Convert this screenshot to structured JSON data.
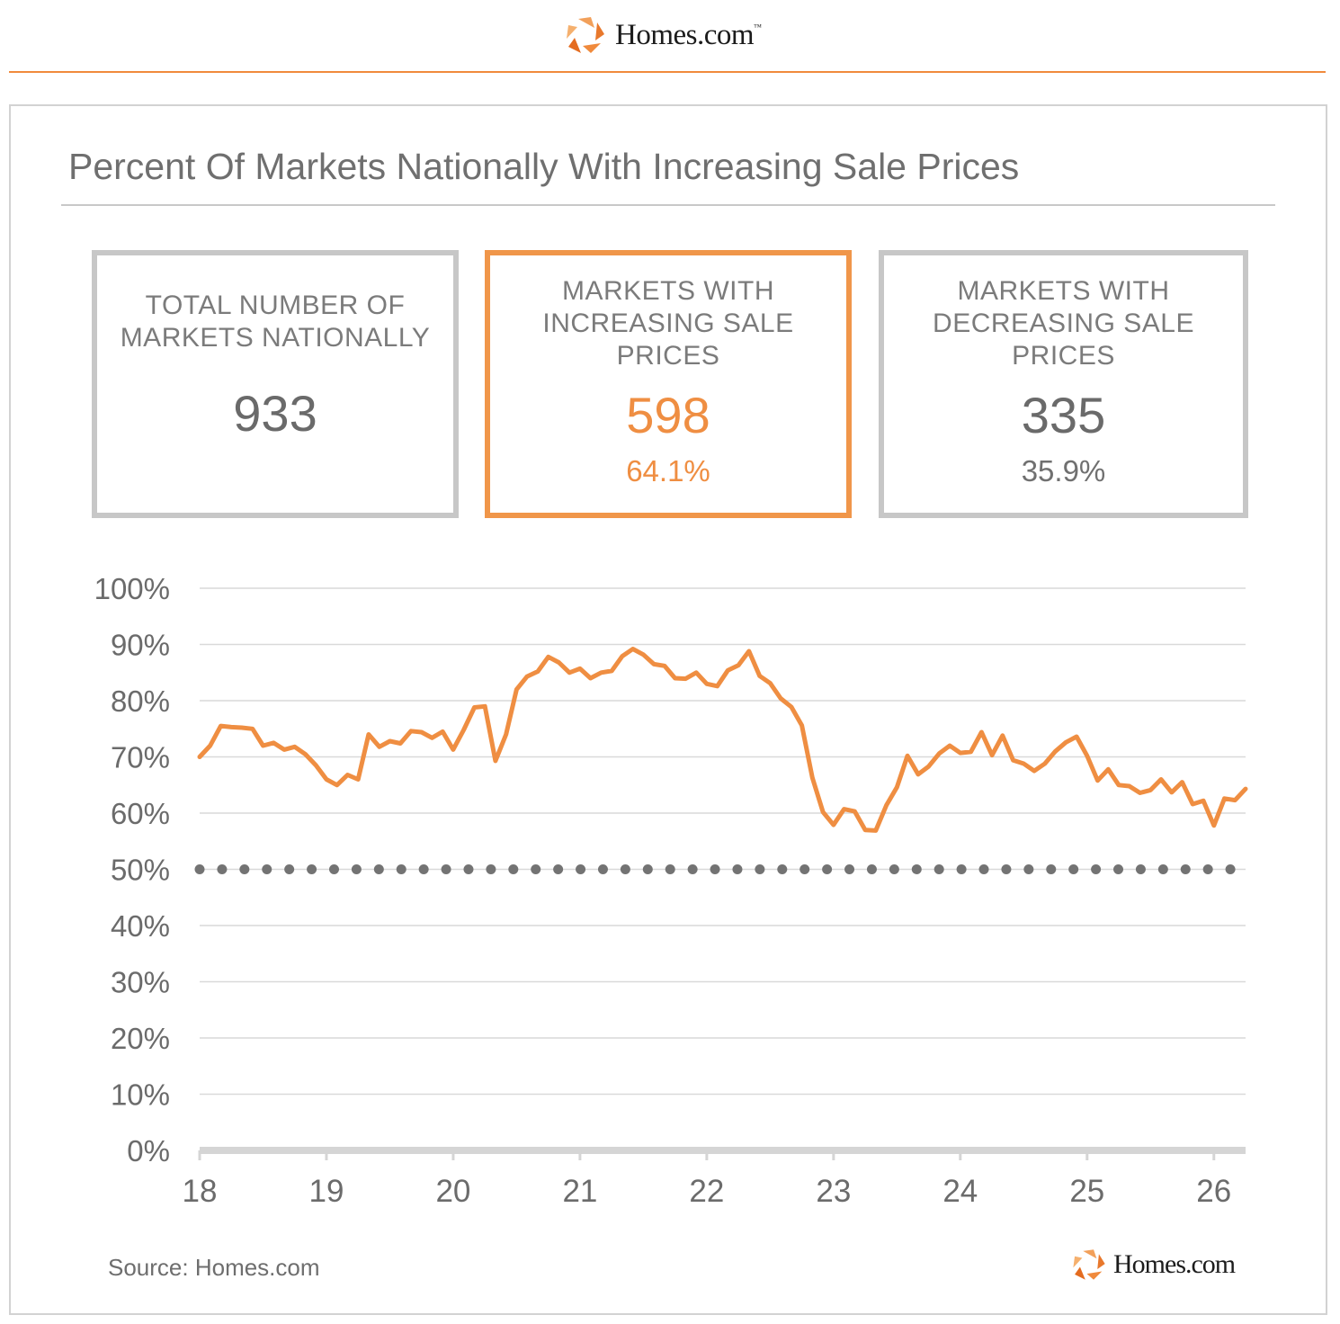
{
  "brand": {
    "name": "Homes.com",
    "trademark": "™",
    "accent_color": "#f08a3c",
    "logo_icon": "homes-star-logo"
  },
  "title": "Percent Of Markets Nationally With Increasing Sale Prices",
  "stats": {
    "total": {
      "label": "TOTAL NUMBER OF MARKETS NATIONALLY",
      "value": "933"
    },
    "increasing": {
      "label": "MARKETS WITH INCREASING SALE PRICES",
      "value": "598",
      "percent": "64.1%",
      "color": "#ef8e42"
    },
    "decreasing": {
      "label": "MARKETS WITH DECREASING SALE PRICES",
      "value": "335",
      "percent": "35.9%"
    }
  },
  "source": "Source: Homes.com",
  "chart_data": {
    "type": "line",
    "title": "Percent Of Markets Nationally With Increasing Sale Prices",
    "xlabel": "",
    "ylabel": "",
    "x_ticks": [
      "18",
      "19",
      "20",
      "21",
      "22",
      "23",
      "24",
      "25",
      "26"
    ],
    "y_ticks": [
      "0%",
      "10%",
      "20%",
      "30%",
      "40%",
      "50%",
      "60%",
      "70%",
      "80%",
      "90%",
      "100%"
    ],
    "ylim": [
      0,
      100
    ],
    "xlim": [
      18,
      26.25
    ],
    "grid": true,
    "reference_line": {
      "y": 50,
      "style": "dotted",
      "color": "#737373"
    },
    "series": [
      {
        "color": "#ef8e42",
        "x": [
          18.0,
          18.083,
          18.167,
          18.25,
          18.333,
          18.417,
          18.5,
          18.583,
          18.667,
          18.75,
          18.833,
          18.917,
          19.0,
          19.083,
          19.167,
          19.25,
          19.333,
          19.417,
          19.5,
          19.583,
          19.667,
          19.75,
          19.833,
          19.917,
          20.0,
          20.083,
          20.167,
          20.25,
          20.333,
          20.417,
          20.5,
          20.583,
          20.667,
          20.75,
          20.833,
          20.917,
          21.0,
          21.083,
          21.167,
          21.25,
          21.333,
          21.417,
          21.5,
          21.583,
          21.667,
          21.75,
          21.833,
          21.917,
          22.0,
          22.083,
          22.167,
          22.25,
          22.333,
          22.417,
          22.5,
          22.583,
          22.667,
          22.75,
          22.833,
          22.917,
          23.0,
          23.083,
          23.167,
          23.25,
          23.333,
          23.417,
          23.5,
          23.583,
          23.667,
          23.75,
          23.833,
          23.917,
          24.0,
          24.083,
          24.167,
          24.25,
          24.333,
          24.417,
          24.5,
          24.583,
          24.667,
          24.75,
          24.833,
          24.917,
          25.0,
          25.083,
          25.167,
          25.25,
          25.333,
          25.417,
          25.5,
          25.583,
          25.667,
          25.75,
          25.833,
          25.917,
          26.0,
          26.083,
          26.167,
          26.25
        ],
        "values": [
          70,
          72,
          75.5,
          75.3,
          75.2,
          75,
          72,
          72.5,
          71.3,
          71.8,
          70.5,
          68.5,
          66,
          65,
          66.8,
          66,
          74,
          71.8,
          72.8,
          72.4,
          74.6,
          74.4,
          73.4,
          74.5,
          71.3,
          74.8,
          78.8,
          79,
          69.3,
          74,
          82,
          84.3,
          85.2,
          87.8,
          86.8,
          85,
          85.7,
          84,
          85,
          85.3,
          87.9,
          89.2,
          88.2,
          86.5,
          86.2,
          84,
          83.9,
          85,
          83,
          82.6,
          85.4,
          86.3,
          88.8,
          84.4,
          83.1,
          80.4,
          78.9,
          75.6,
          66.3,
          60.2,
          57.9,
          60.7,
          60.3,
          57,
          56.9,
          61.4,
          64.6,
          70.2,
          66.9,
          68.3,
          70.6,
          72,
          70.7,
          70.9,
          74.4,
          70.3,
          73.8,
          69.4,
          68.8,
          67.5,
          68.8,
          71,
          72.6,
          73.6,
          70.2,
          65.8,
          67.8,
          65,
          64.8,
          63.6,
          64.1,
          66,
          63.7,
          65.5,
          61.6,
          62.2,
          57.8,
          62.6,
          62.3,
          64.3
        ]
      }
    ]
  }
}
